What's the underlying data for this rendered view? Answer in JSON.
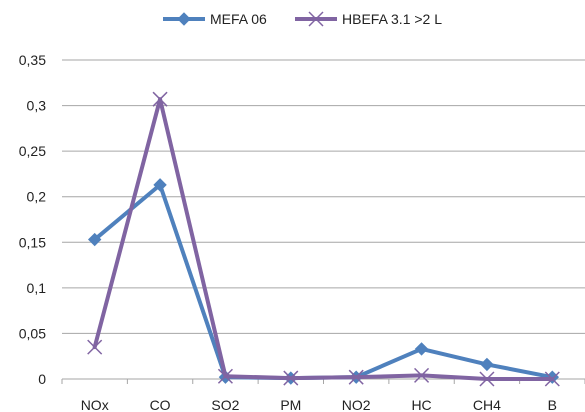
{
  "chart_data": {
    "type": "line",
    "categories": [
      "NOx",
      "CO",
      "SO2",
      "PM",
      "NO2",
      "HC",
      "CH4",
      "B"
    ],
    "series": [
      {
        "name": "MEFA 06",
        "color": "#4f81bd",
        "marker": "diamond",
        "values": [
          0.153,
          0.213,
          0.002,
          0.001,
          0.002,
          0.033,
          0.016,
          0.002
        ]
      },
      {
        "name": "HBEFA 3.1 >2 L",
        "color": "#8064a2",
        "marker": "x",
        "values": [
          0.035,
          0.307,
          0.003,
          0.001,
          0.002,
          0.004,
          0.0,
          0.0
        ]
      }
    ],
    "ylim": [
      0,
      0.35
    ],
    "yticks": [
      0,
      0.05,
      0.1,
      0.15,
      0.2,
      0.25,
      0.3,
      0.35
    ],
    "ytick_labels": [
      "0",
      "0,05",
      "0,1",
      "0,15",
      "0,2",
      "0,25",
      "0,3",
      "0,35"
    ],
    "grid": true,
    "legend_position": "top-center",
    "title": "",
    "xlabel": "",
    "ylabel": ""
  }
}
